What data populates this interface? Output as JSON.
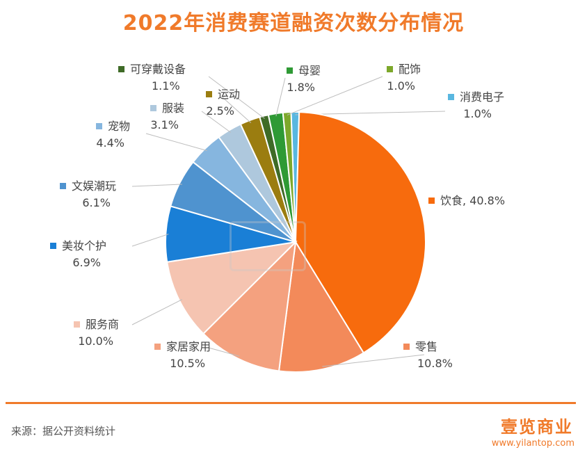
{
  "chart_data": {
    "type": "pie",
    "title": "2022年消费赛道融资次数分布情况",
    "slices": [
      {
        "label": "消费电子",
        "value": 1.0,
        "value_text": "1.0%",
        "color": "#59b7e0"
      },
      {
        "label": "饮食",
        "value": 40.8,
        "value_text": "40.8%",
        "color": "#f76b0d"
      },
      {
        "label": "零售",
        "value": 10.8,
        "value_text": "10.8%",
        "color": "#f38a5a"
      },
      {
        "label": "家居家用",
        "value": 10.5,
        "value_text": "10.5%",
        "color": "#f4a17f"
      },
      {
        "label": "服务商",
        "value": 10.0,
        "value_text": "10.0%",
        "color": "#f5c4b1"
      },
      {
        "label": "美妆个护",
        "value": 6.9,
        "value_text": "6.9%",
        "color": "#1a7fd6"
      },
      {
        "label": "文娱潮玩",
        "value": 6.1,
        "value_text": "6.1%",
        "color": "#4f93cf"
      },
      {
        "label": "宠物",
        "value": 4.4,
        "value_text": "4.4%",
        "color": "#86b6df"
      },
      {
        "label": "服装",
        "value": 3.1,
        "value_text": "3.1%",
        "color": "#aec8dd"
      },
      {
        "label": "运动",
        "value": 2.5,
        "value_text": "2.5%",
        "color": "#9b7d10"
      },
      {
        "label": "可穿戴设备",
        "value": 1.1,
        "value_text": "1.1%",
        "color": "#3f6b27"
      },
      {
        "label": "母婴",
        "value": 1.8,
        "value_text": "1.8%",
        "color": "#2f9a35"
      },
      {
        "label": "配饰",
        "value": 1.0,
        "value_text": "1.0%",
        "color": "#7da82b"
      }
    ]
  },
  "footer": {
    "source": "来源：据公开资料统计",
    "brand": "壹览商业",
    "url": "www.yilantop.com"
  }
}
